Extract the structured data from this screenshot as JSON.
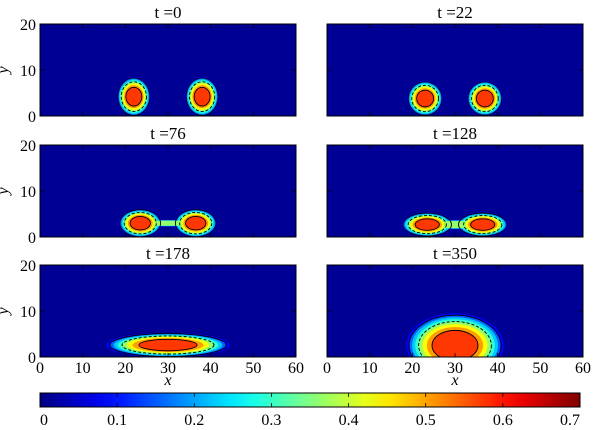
{
  "figure": {
    "colorbar": {
      "ticks": [
        "0",
        "0.1",
        "0.2",
        "0.3",
        "0.4",
        "0.5",
        "0.6",
        "0.7"
      ],
      "range": [
        0,
        0.7
      ],
      "colormap": "jet"
    }
  },
  "chart_data": [
    {
      "type": "heatmap",
      "title": "t =0",
      "time": 0,
      "xlabel": "",
      "ylabel": "y",
      "xlim": [
        0,
        60
      ],
      "ylim": [
        0,
        20
      ],
      "xticks": [],
      "yticks": [
        "0",
        "10",
        "20"
      ],
      "drops": [
        {
          "cx": 22,
          "cy": 4.2,
          "rx": 3.3,
          "ry": 3.6,
          "peak": 0.68
        },
        {
          "cx": 38,
          "cy": 4.2,
          "rx": 3.3,
          "ry": 3.6,
          "peak": 0.68
        }
      ]
    },
    {
      "type": "heatmap",
      "title": "t =22",
      "time": 22,
      "xlabel": "",
      "ylabel": "",
      "xlim": [
        0,
        60
      ],
      "ylim": [
        0,
        20
      ],
      "xticks": [],
      "yticks": [],
      "drops": [
        {
          "cx": 23,
          "cy": 3.8,
          "rx": 3.5,
          "ry": 3.2,
          "peak": 0.68
        },
        {
          "cx": 37,
          "cy": 3.8,
          "rx": 3.5,
          "ry": 3.2,
          "peak": 0.68
        }
      ]
    },
    {
      "type": "heatmap",
      "title": "t =76",
      "time": 76,
      "xlabel": "",
      "ylabel": "y",
      "xlim": [
        0,
        60
      ],
      "ylim": [
        0,
        20
      ],
      "xticks": [],
      "yticks": [
        "0",
        "10",
        "20"
      ],
      "drops": [
        {
          "cx": 23.5,
          "cy": 3.0,
          "rx": 4.2,
          "ry": 2.6,
          "peak": 0.68
        },
        {
          "cx": 36.5,
          "cy": 3.0,
          "rx": 4.2,
          "ry": 2.6,
          "peak": 0.68
        }
      ]
    },
    {
      "type": "heatmap",
      "title": "t =128",
      "time": 128,
      "xlabel": "",
      "ylabel": "",
      "xlim": [
        0,
        60
      ],
      "ylim": [
        0,
        20
      ],
      "xticks": [],
      "yticks": [],
      "drops": [
        {
          "cx": 23.5,
          "cy": 2.7,
          "rx": 5.0,
          "ry": 2.2,
          "peak": 0.68
        },
        {
          "cx": 36.5,
          "cy": 2.7,
          "rx": 5.0,
          "ry": 2.2,
          "peak": 0.68
        }
      ]
    },
    {
      "type": "heatmap",
      "title": "t =178",
      "time": 178,
      "xlabel": "x",
      "ylabel": "y",
      "xlim": [
        0,
        60
      ],
      "ylim": [
        0,
        20
      ],
      "xticks": [
        "0",
        "10",
        "20",
        "30",
        "40",
        "50",
        "60"
      ],
      "yticks": [
        "0",
        "10",
        "20"
      ],
      "drops": [
        {
          "cx": 30,
          "cy": 2.6,
          "rx": 12,
          "ry": 2.2,
          "peak": 0.68
        }
      ]
    },
    {
      "type": "heatmap",
      "title": "t =350",
      "time": 350,
      "xlabel": "x",
      "ylabel": "",
      "xlim": [
        0,
        60
      ],
      "ylim": [
        0,
        20
      ],
      "xticks": [
        "0",
        "10",
        "20",
        "30",
        "40",
        "50",
        "60"
      ],
      "yticks": [],
      "drops": [
        {
          "cx": 30,
          "cy": 2.5,
          "rx": 9.5,
          "ry": 5.8,
          "peak": 0.68
        }
      ]
    }
  ]
}
